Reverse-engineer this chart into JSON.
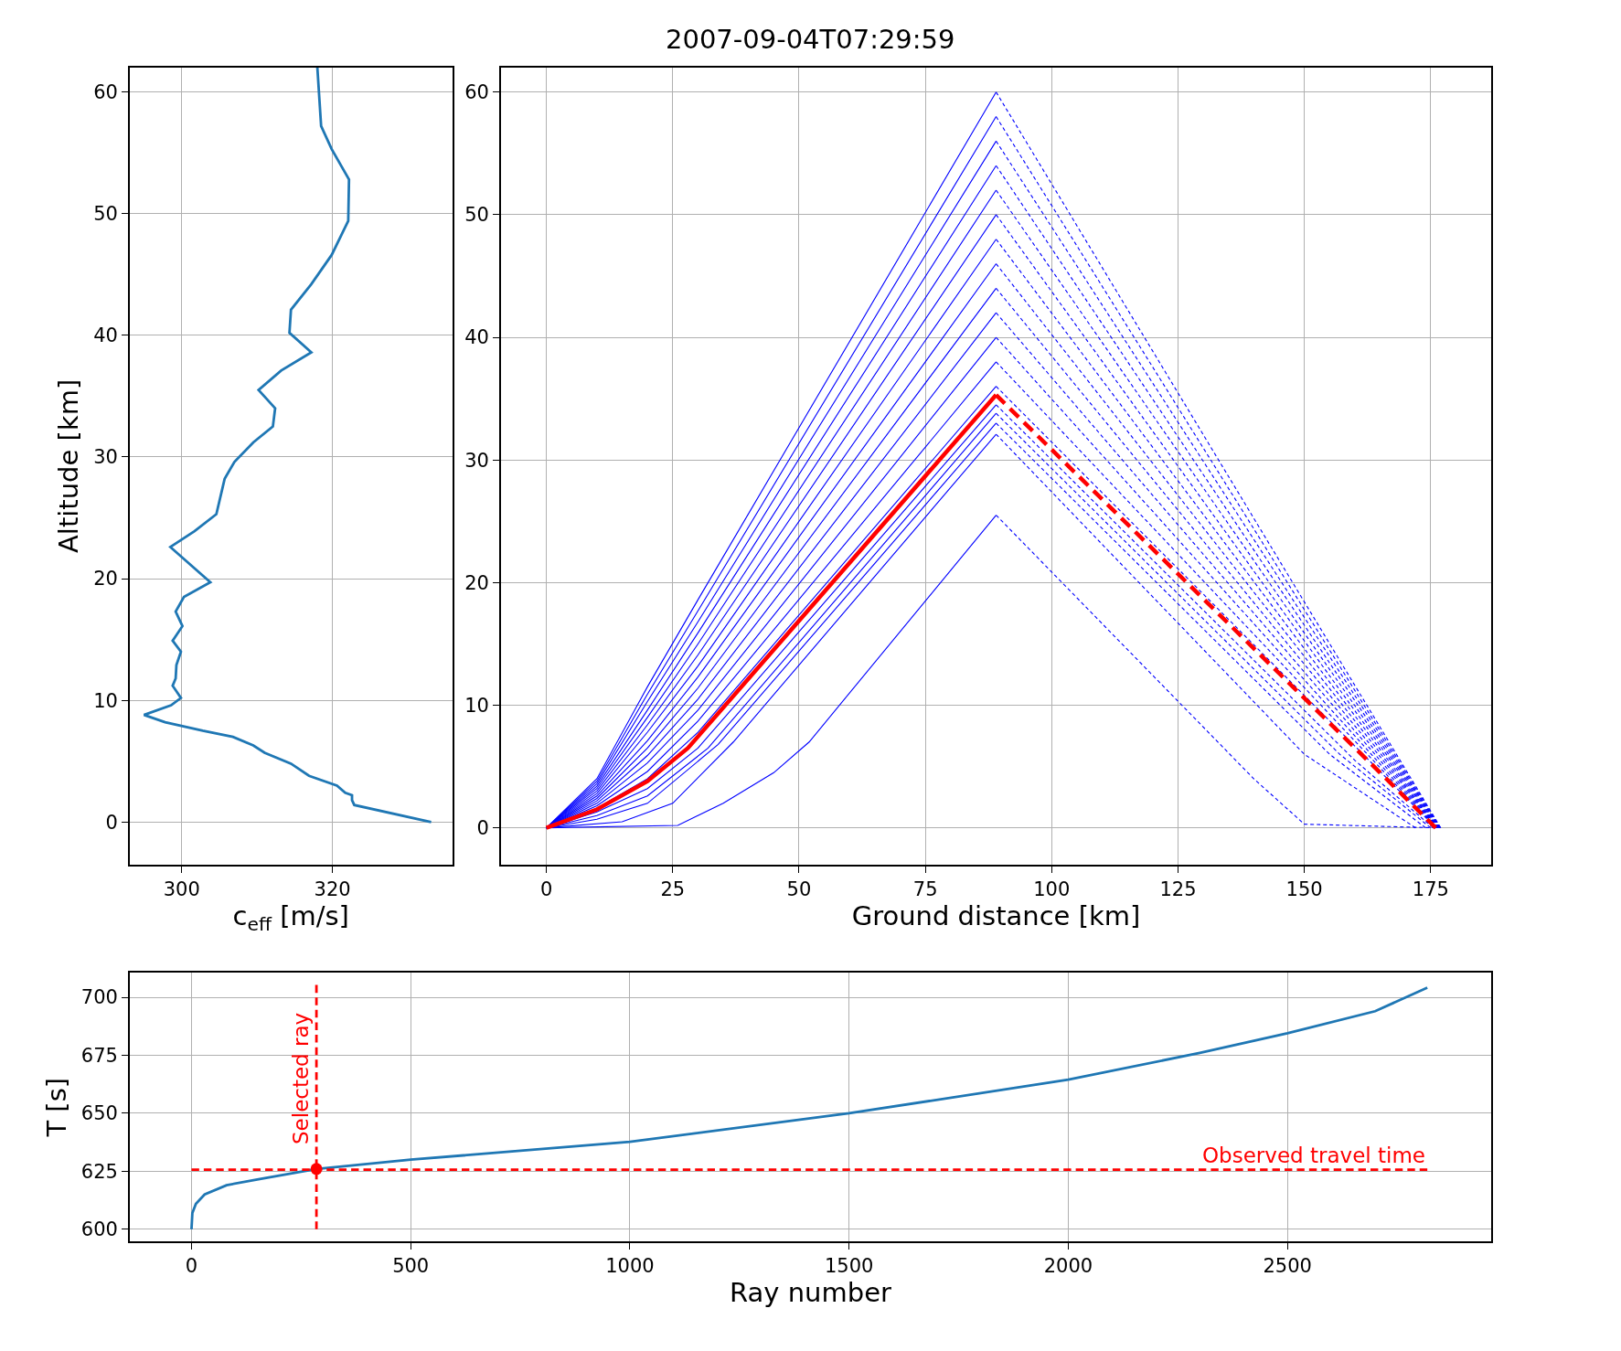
{
  "chart_data": [
    {
      "type": "line",
      "xlabel": "c$_{eff}$ [m/s]",
      "ylabel": "Altitude [km]",
      "xlim": [
        293.1,
        335.9
      ],
      "ylim": [
        -3.5,
        62
      ],
      "xticks": [
        300,
        320
      ],
      "yticks": [
        0,
        10,
        20,
        30,
        40,
        50,
        60
      ],
      "grid": true,
      "legend": false,
      "series": [
        {
          "color": "#1f77b4",
          "x": [
            333.1,
            322.9,
            322.6,
            322.6,
            321.7,
            320.6,
            316.9,
            314.5,
            311.0,
            309.5,
            306.8,
            302.8,
            297.8,
            295.0,
            298.6,
            299.9,
            298.8,
            299.2,
            299.3,
            299.9,
            298.8,
            300.1,
            299.2,
            300.3,
            303.8,
            298.5,
            301.7,
            304.6,
            305.7,
            307.0,
            309.5,
            312.1,
            312.4,
            310.2,
            313.2,
            317.2,
            314.3,
            314.5,
            317.2,
            319.9,
            322.1,
            322.2,
            319.9,
            318.5,
            318.0
          ],
          "values": [
            0,
            1.4,
            1.8,
            2.2,
            2.4,
            3.0,
            3.8,
            4.8,
            5.7,
            6.3,
            7.0,
            7.5,
            8.2,
            8.8,
            9.6,
            10.2,
            11.2,
            11.8,
            12.9,
            14.0,
            14.9,
            16.1,
            17.3,
            18.5,
            19.7,
            22.6,
            23.9,
            25.3,
            28.2,
            29.6,
            31.2,
            32.5,
            34.0,
            35.5,
            37.1,
            38.6,
            40.2,
            42.1,
            44.2,
            46.6,
            49.4,
            52.8,
            55.3,
            57.2,
            62
          ]
        }
      ]
    },
    {
      "type": "line",
      "title": "2007-09-04T07:29:59",
      "xlabel": "Ground distance [km]",
      "xlim": [
        -9,
        187
      ],
      "ylim": [
        -3,
        62
      ],
      "xticks": [
        0,
        25,
        50,
        75,
        100,
        125,
        150,
        175
      ],
      "yticks": [
        0,
        10,
        20,
        30,
        40,
        50,
        60
      ],
      "grid": true,
      "legend": false,
      "series": [
        {
          "color": "#0000ff",
          "line_style": "solid",
          "x": [
            0,
            26,
            35,
            45,
            52,
            89
          ],
          "values": [
            0,
            0.2,
            2,
            4.5,
            7,
            25.5
          ]
        },
        {
          "color": "#0000ff",
          "line_style": "dashed",
          "x": [
            89,
            140,
            150,
            176
          ],
          "values": [
            25.5,
            4,
            0.3,
            0
          ]
        },
        {
          "color": "#0000ff",
          "line_style": "solid",
          "x": [
            0,
            15,
            25,
            37,
            89
          ],
          "values": [
            0,
            0.5,
            2.0,
            7,
            32.1
          ]
        },
        {
          "color": "#0000ff",
          "line_style": "dashed",
          "x": [
            89,
            150,
            172
          ],
          "values": [
            32.1,
            6,
            0
          ]
        },
        {
          "color": "#0000ff",
          "line_style": "solid",
          "x": [
            0,
            10,
            20,
            34,
            89
          ],
          "values": [
            0,
            0.7,
            2.0,
            6.8,
            33.0
          ]
        },
        {
          "color": "#0000ff",
          "line_style": "dashed",
          "x": [
            89,
            155,
            174
          ],
          "values": [
            33.0,
            6,
            0
          ]
        },
        {
          "color": "#0000ff",
          "line_style": "solid",
          "x": [
            0,
            10,
            20,
            32,
            89
          ],
          "values": [
            0,
            1.0,
            2.6,
            6.5,
            33.8
          ]
        },
        {
          "color": "#0000ff",
          "line_style": "dashed",
          "x": [
            89,
            157,
            175
          ],
          "values": [
            33.8,
            6,
            0
          ]
        },
        {
          "color": "#0000ff",
          "line_style": "solid",
          "x": [
            0,
            10,
            20,
            30,
            89
          ],
          "values": [
            0,
            1.3,
            3.2,
            6.5,
            34.5
          ]
        },
        {
          "color": "#0000ff",
          "line_style": "dashed",
          "x": [
            89,
            160,
            175.5
          ],
          "values": [
            34.5,
            5.5,
            0
          ]
        },
        {
          "color": "#0000ff",
          "line_style": "solid",
          "x": [
            0,
            10,
            20,
            30,
            89
          ],
          "values": [
            0,
            1.6,
            4.0,
            7.8,
            36
          ]
        },
        {
          "color": "#0000ff",
          "line_style": "dashed",
          "x": [
            89,
            165,
            176
          ],
          "values": [
            36,
            4.6,
            0
          ]
        },
        {
          "color": "#0000ff",
          "line_style": "solid",
          "x": [
            0,
            10,
            20,
            30,
            89
          ],
          "values": [
            0,
            1.8,
            4.6,
            8.7,
            38
          ]
        },
        {
          "color": "#0000ff",
          "line_style": "dashed",
          "x": [
            89,
            165,
            176.1
          ],
          "values": [
            38,
            4.9,
            0
          ]
        },
        {
          "color": "#0000ff",
          "line_style": "solid",
          "x": [
            0,
            10,
            20,
            30,
            89
          ],
          "values": [
            0,
            2.0,
            5.3,
            9.6,
            40
          ]
        },
        {
          "color": "#0000ff",
          "line_style": "dashed",
          "x": [
            89,
            165,
            176.2
          ],
          "values": [
            40,
            5.2,
            0
          ]
        },
        {
          "color": "#0000ff",
          "line_style": "solid",
          "x": [
            0,
            10,
            20,
            30,
            89
          ],
          "values": [
            0,
            2.2,
            5.9,
            10.5,
            42
          ]
        },
        {
          "color": "#0000ff",
          "line_style": "dashed",
          "x": [
            89,
            165,
            176.3
          ],
          "values": [
            42,
            5.5,
            0
          ]
        },
        {
          "color": "#0000ff",
          "line_style": "solid",
          "x": [
            0,
            10,
            20,
            30,
            89
          ],
          "values": [
            0,
            2.4,
            6.5,
            11.4,
            44
          ]
        },
        {
          "color": "#0000ff",
          "line_style": "dashed",
          "x": [
            89,
            165,
            176.4
          ],
          "values": [
            44,
            5.8,
            0
          ]
        },
        {
          "color": "#0000ff",
          "line_style": "solid",
          "x": [
            0,
            10,
            20,
            30,
            89
          ],
          "values": [
            0,
            2.6,
            7.1,
            12.3,
            46
          ]
        },
        {
          "color": "#0000ff",
          "line_style": "dashed",
          "x": [
            89,
            165,
            176.4
          ],
          "values": [
            46,
            6.1,
            0
          ]
        },
        {
          "color": "#0000ff",
          "line_style": "solid",
          "x": [
            0,
            10,
            20,
            30,
            89
          ],
          "values": [
            0,
            2.8,
            7.8,
            13.2,
            48
          ]
        },
        {
          "color": "#0000ff",
          "line_style": "dashed",
          "x": [
            89,
            165,
            176.5
          ],
          "values": [
            48,
            6.4,
            0
          ]
        },
        {
          "color": "#0000ff",
          "line_style": "solid",
          "x": [
            0,
            10,
            20,
            30,
            89
          ],
          "values": [
            0,
            3.0,
            8.4,
            14.1,
            50
          ]
        },
        {
          "color": "#0000ff",
          "line_style": "dashed",
          "x": [
            89,
            165,
            176.6
          ],
          "values": [
            50,
            6.7,
            0
          ]
        },
        {
          "color": "#0000ff",
          "line_style": "solid",
          "x": [
            0,
            10,
            20,
            30,
            89
          ],
          "values": [
            0,
            3.2,
            9.0,
            15.0,
            52
          ]
        },
        {
          "color": "#0000ff",
          "line_style": "dashed",
          "x": [
            89,
            165,
            176.7
          ],
          "values": [
            52,
            7.0,
            0
          ]
        },
        {
          "color": "#0000ff",
          "line_style": "solid",
          "x": [
            0,
            10,
            20,
            30,
            89
          ],
          "values": [
            0,
            3.4,
            9.6,
            15.9,
            54
          ]
        },
        {
          "color": "#0000ff",
          "line_style": "dashed",
          "x": [
            89,
            165,
            176.8
          ],
          "values": [
            54,
            7.3,
            0
          ]
        },
        {
          "color": "#0000ff",
          "line_style": "solid",
          "x": [
            0,
            10,
            20,
            30,
            89
          ],
          "values": [
            0,
            3.6,
            10.3,
            16.8,
            56
          ]
        },
        {
          "color": "#0000ff",
          "line_style": "dashed",
          "x": [
            89,
            165,
            176.8
          ],
          "values": [
            56,
            7.6,
            0
          ]
        },
        {
          "color": "#0000ff",
          "line_style": "solid",
          "x": [
            0,
            10,
            20,
            30,
            89
          ],
          "values": [
            0,
            3.8,
            10.9,
            17.7,
            58
          ]
        },
        {
          "color": "#0000ff",
          "line_style": "dashed",
          "x": [
            89,
            165,
            176.9
          ],
          "values": [
            58,
            7.9,
            0
          ]
        },
        {
          "color": "#0000ff",
          "line_style": "solid",
          "x": [
            0,
            10,
            20,
            30,
            89
          ],
          "values": [
            0,
            4.0,
            11.5,
            18.6,
            60
          ]
        },
        {
          "color": "#0000ff",
          "line_style": "dashed",
          "x": [
            89,
            165,
            177
          ],
          "values": [
            60,
            8.2,
            0
          ]
        },
        {
          "color": "#ff0000",
          "line_style": "solid",
          "x": [
            0,
            10,
            20,
            28,
            89
          ],
          "values": [
            0,
            1.5,
            3.8,
            6.5,
            35.3
          ]
        },
        {
          "color": "#ff0000",
          "line_style": "dashed",
          "x": [
            89,
            165,
            176
          ],
          "values": [
            35.3,
            4.5,
            0
          ]
        }
      ]
    },
    {
      "type": "line",
      "xlabel": "Ray number",
      "ylabel": "T [s]",
      "xlim": [
        -141,
        2965
      ],
      "ylim": [
        594.7,
        710.6
      ],
      "xticks": [
        0,
        500,
        1000,
        1500,
        2000,
        2500
      ],
      "yticks": [
        600,
        625,
        650,
        675,
        700
      ],
      "grid": true,
      "legend": false,
      "series": [
        {
          "color": "#1f77b4",
          "line_style": "solid",
          "x": [
            0,
            2,
            10,
            30,
            80,
            150,
            285,
            500,
            1000,
            1500,
            2000,
            2300,
            2500,
            2700,
            2819
          ],
          "values": [
            600,
            607,
            611,
            615,
            619,
            621.5,
            626,
            630,
            637.7,
            650,
            664.5,
            676,
            684.5,
            694,
            704.2
          ]
        },
        {
          "color": "#ff0000",
          "line_style": "dashed",
          "x": [
            0,
            2819
          ],
          "values": [
            625.7,
            625.7
          ]
        },
        {
          "color": "#ff0000",
          "line_style": "dashed",
          "x": [
            285,
            285
          ],
          "values": [
            600,
            705.3
          ]
        },
        {
          "type": "scatter",
          "color": "#ff0000",
          "marker": "circle",
          "x": [
            285
          ],
          "values": [
            626
          ]
        }
      ],
      "annotations": [
        {
          "text": "Observed travel time",
          "x": 2819,
          "y": 625.7
        },
        {
          "text": "Selected ray",
          "x": 285,
          "y": 665
        }
      ]
    }
  ]
}
